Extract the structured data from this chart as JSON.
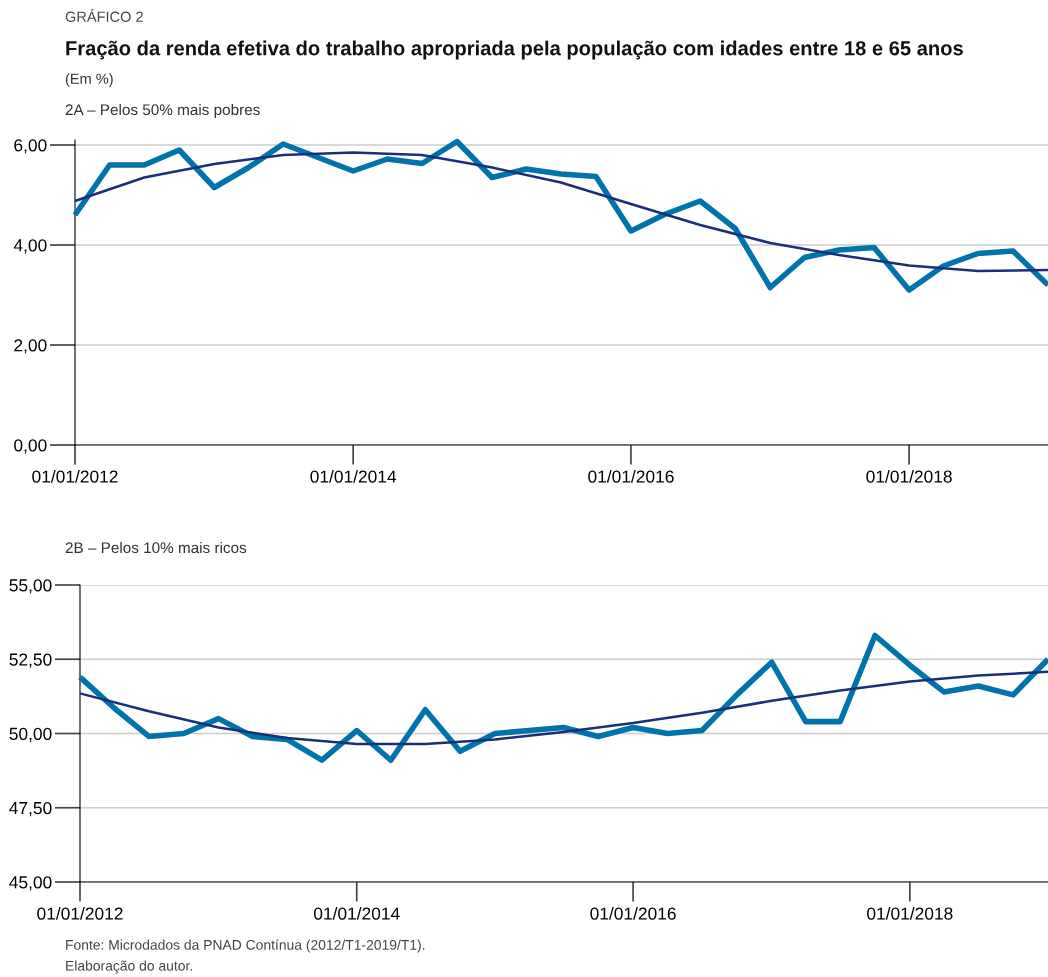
{
  "chart_data": [
    {
      "type": "line",
      "title": "Fração da renda efetiva do trabalho apropriada pela população com idades entre 18 e 65 anos",
      "subtitle": "(Em %)",
      "annotations": [
        "GRÁFICO 2",
        "2A – Pelos 50% mais pobres"
      ],
      "x": [
        "2012-01-01",
        "2012-04-01",
        "2012-07-01",
        "2012-10-01",
        "2013-01-01",
        "2013-04-01",
        "2013-07-01",
        "2013-10-01",
        "2014-01-01",
        "2014-04-01",
        "2014-07-01",
        "2014-10-01",
        "2015-01-01",
        "2015-04-01",
        "2015-07-01",
        "2015-10-01",
        "2016-01-01",
        "2016-04-01",
        "2016-07-01",
        "2016-10-01",
        "2017-01-01",
        "2017-04-01",
        "2017-07-01",
        "2017-10-01",
        "2018-01-01",
        "2018-04-01",
        "2018-07-01",
        "2018-10-01",
        "2019-01-01"
      ],
      "series": [
        {
          "color": "#0073ad",
          "values": [
            4.6,
            5.6,
            5.6,
            5.9,
            5.15,
            5.55,
            6.02,
            5.75,
            5.48,
            5.72,
            5.63,
            6.07,
            5.35,
            5.52,
            5.42,
            5.37,
            4.28,
            4.62,
            4.88,
            4.33,
            3.15,
            3.75,
            3.9,
            3.95,
            3.1,
            3.58,
            3.83,
            3.88,
            3.2
          ]
        },
        {
          "color": "#1a2f7a",
          "x": [
            "2012-01-01",
            "2012-07-01",
            "2013-01-01",
            "2013-07-01",
            "2014-01-01",
            "2014-07-01",
            "2015-01-01",
            "2015-07-01",
            "2016-01-01",
            "2016-07-01",
            "2017-01-01",
            "2017-07-01",
            "2018-01-01",
            "2018-07-01",
            "2019-01-01"
          ],
          "values": [
            4.88,
            5.35,
            5.62,
            5.8,
            5.85,
            5.8,
            5.55,
            5.25,
            4.82,
            4.4,
            4.04,
            3.8,
            3.59,
            3.48,
            3.5
          ]
        }
      ],
      "xlim": [
        "2012-01-01",
        "2019-01-01"
      ],
      "xticks": [
        {
          "value": "2012-01-01",
          "label": "01/01/2012"
        },
        {
          "value": "2014-01-01",
          "label": "01/01/2014"
        },
        {
          "value": "2016-01-01",
          "label": "01/01/2016"
        },
        {
          "value": "2018-01-01",
          "label": "01/01/2018"
        }
      ],
      "ylim": [
        0,
        6.1
      ],
      "yticks": [
        {
          "value": 0,
          "label": "0,00"
        },
        {
          "value": 2,
          "label": "2,00"
        },
        {
          "value": 4,
          "label": "4,00"
        },
        {
          "value": 6,
          "label": "6,00"
        }
      ],
      "grid": "y"
    },
    {
      "type": "line",
      "title": "2B – Pelos 10% mais ricos",
      "annotations": [
        "Fonte: Microdados da PNAD Contínua (2012/T1-2019/T1).",
        "Elaboração do autor."
      ],
      "x": [
        "2012-01-01",
        "2012-04-01",
        "2012-07-01",
        "2012-10-01",
        "2013-01-01",
        "2013-04-01",
        "2013-07-01",
        "2013-10-01",
        "2014-01-01",
        "2014-04-01",
        "2014-07-01",
        "2014-10-01",
        "2015-01-01",
        "2015-04-01",
        "2015-07-01",
        "2015-10-01",
        "2016-01-01",
        "2016-04-01",
        "2016-07-01",
        "2016-10-01",
        "2017-01-01",
        "2017-04-01",
        "2017-07-01",
        "2017-10-01",
        "2018-01-01",
        "2018-04-01",
        "2018-07-01",
        "2018-10-01",
        "2019-01-01"
      ],
      "series": [
        {
          "color": "#0073ad",
          "values": [
            51.9,
            50.85,
            49.9,
            50.0,
            50.5,
            49.9,
            49.8,
            49.1,
            50.1,
            49.1,
            50.8,
            49.4,
            50.0,
            50.1,
            50.2,
            49.9,
            50.2,
            50.0,
            50.1,
            51.3,
            52.4,
            50.4,
            50.4,
            53.3,
            52.3,
            51.4,
            51.6,
            51.3,
            52.5
          ]
        },
        {
          "color": "#1a2f7a",
          "x": [
            "2012-01-01",
            "2012-07-01",
            "2013-01-01",
            "2013-07-01",
            "2014-01-01",
            "2014-07-01",
            "2015-01-01",
            "2015-07-01",
            "2016-01-01",
            "2016-07-01",
            "2017-01-01",
            "2017-07-01",
            "2018-01-01",
            "2018-07-01",
            "2019-01-01"
          ],
          "values": [
            51.35,
            50.75,
            50.2,
            49.85,
            49.65,
            49.65,
            49.8,
            50.05,
            50.35,
            50.7,
            51.1,
            51.45,
            51.75,
            51.95,
            52.08
          ]
        }
      ],
      "xlim": [
        "2012-01-01",
        "2019-01-01"
      ],
      "xticks": [
        {
          "value": "2012-01-01",
          "label": "01/01/2012"
        },
        {
          "value": "2014-01-01",
          "label": "01/01/2014"
        },
        {
          "value": "2016-01-01",
          "label": "01/01/2016"
        },
        {
          "value": "2018-01-01",
          "label": "01/01/2018"
        }
      ],
      "ylim": [
        45,
        55
      ],
      "yticks": [
        {
          "value": 45,
          "label": "45,00"
        },
        {
          "value": 47.5,
          "label": "47,50"
        },
        {
          "value": 50,
          "label": "50,00"
        },
        {
          "value": 52.5,
          "label": "52,50"
        },
        {
          "value": 55,
          "label": "55,00"
        }
      ],
      "grid": "y"
    }
  ]
}
